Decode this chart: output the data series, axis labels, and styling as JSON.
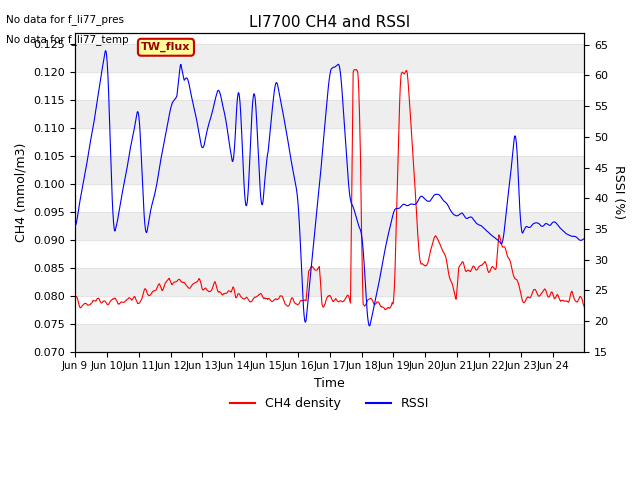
{
  "title": "LI7700 CH4 and RSSI",
  "xlabel": "Time",
  "ylabel_left": "CH4 (mmol/m3)",
  "ylabel_right": "RSSI (%)",
  "annotation_lines": [
    "No data for f_li77_pres",
    "No data for f_li77_temp"
  ],
  "box_label": "TW_flux",
  "legend": [
    "CH4 density",
    "RSSI"
  ],
  "ylim_left": [
    0.07,
    0.127
  ],
  "ylim_right": [
    15,
    67
  ],
  "yticks_left": [
    0.07,
    0.075,
    0.08,
    0.085,
    0.09,
    0.095,
    0.1,
    0.105,
    0.11,
    0.115,
    0.12,
    0.125
  ],
  "yticks_right": [
    15,
    20,
    25,
    30,
    35,
    40,
    45,
    50,
    55,
    60,
    65
  ],
  "xtick_labels": [
    "Jun 9",
    "Jun 10",
    "Jun 11",
    "Jun 12",
    "Jun 13",
    "Jun 14",
    "Jun 15",
    "Jun 16",
    "Jun 17",
    "Jun 18",
    "Jun 19",
    "Jun 20",
    "Jun 21",
    "Jun 22",
    "Jun 23",
    "Jun 24"
  ],
  "background_color": "#ffffff",
  "grid_color": "#e0e0e0",
  "ch4_color": "#ff0000",
  "rssi_color": "#0000ff",
  "box_color": "#ffff99",
  "box_border_color": "#cc0000"
}
